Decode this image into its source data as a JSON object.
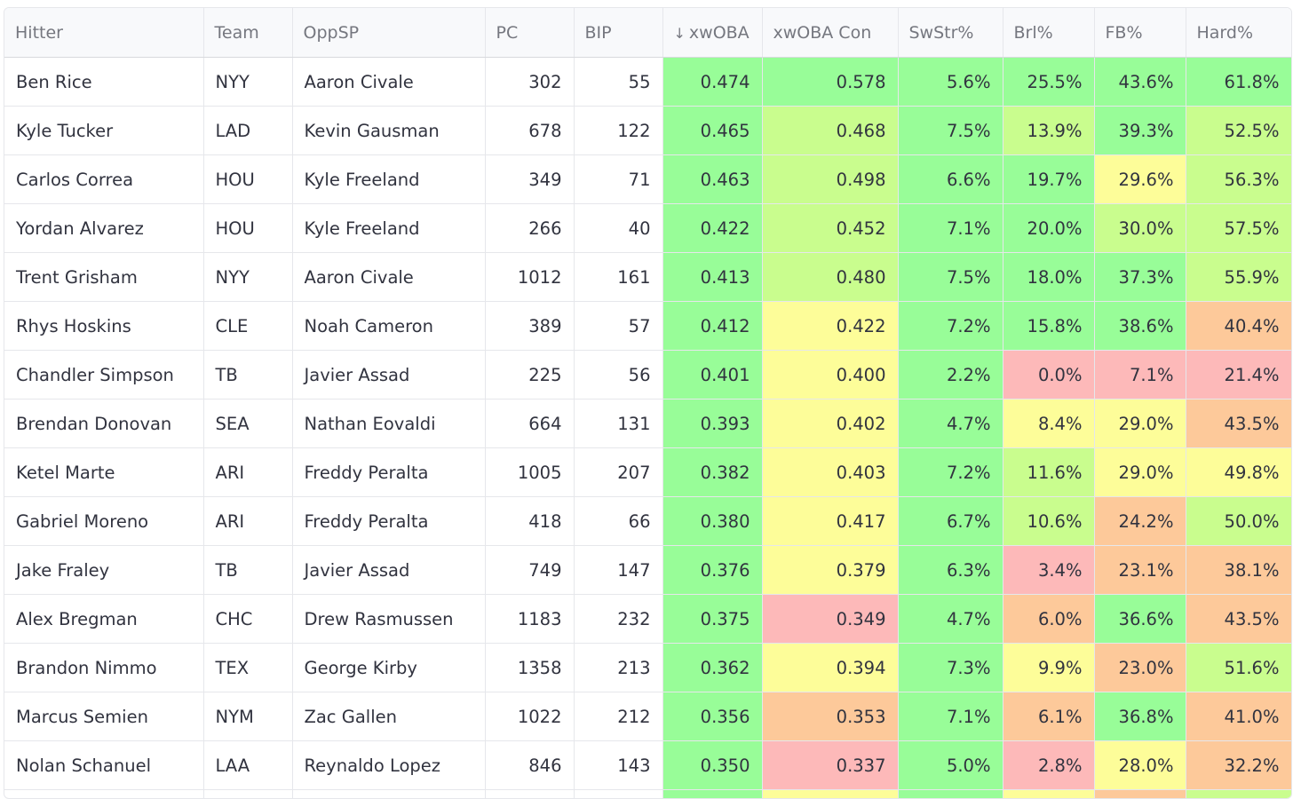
{
  "colors": {
    "green": "#98fd98",
    "lightgreen": "#c9fd8e",
    "yellow": "#fdfd99",
    "orange": "#fdc99a",
    "red": "#fdb9b9"
  },
  "table": {
    "columns": [
      {
        "key": "hitter",
        "label": "Hitter",
        "sort_icon": ""
      },
      {
        "key": "team",
        "label": "Team",
        "sort_icon": ""
      },
      {
        "key": "oppsp",
        "label": "OppSP",
        "sort_icon": ""
      },
      {
        "key": "pc",
        "label": "PC",
        "sort_icon": ""
      },
      {
        "key": "bip",
        "label": "BIP",
        "sort_icon": ""
      },
      {
        "key": "xwoba",
        "label": "xwOBA",
        "sort_icon": "arrow-down-icon"
      },
      {
        "key": "xwoba_con",
        "label": "xwOBA Con",
        "sort_icon": ""
      },
      {
        "key": "swstr",
        "label": "SwStr%",
        "sort_icon": ""
      },
      {
        "key": "brl",
        "label": "Brl%",
        "sort_icon": ""
      },
      {
        "key": "fb",
        "label": "FB%",
        "sort_icon": ""
      },
      {
        "key": "hard",
        "label": "Hard%",
        "sort_icon": ""
      }
    ],
    "rows": [
      {
        "hitter": "Ben Rice",
        "team": "NYY",
        "oppsp": "Aaron Civale",
        "pc": "302",
        "bip": "55",
        "xwoba": "0.474",
        "xwoba_con": "0.578",
        "swstr": "5.6%",
        "brl": "25.5%",
        "fb": "43.6%",
        "hard": "61.8%",
        "bg": {
          "xwoba": "green",
          "xwoba_con": "green",
          "swstr": "green",
          "brl": "green",
          "fb": "green",
          "hard": "green"
        }
      },
      {
        "hitter": "Kyle Tucker",
        "team": "LAD",
        "oppsp": "Kevin Gausman",
        "pc": "678",
        "bip": "122",
        "xwoba": "0.465",
        "xwoba_con": "0.468",
        "swstr": "7.5%",
        "brl": "13.9%",
        "fb": "39.3%",
        "hard": "52.5%",
        "bg": {
          "xwoba": "green",
          "xwoba_con": "lightgreen",
          "swstr": "green",
          "brl": "lightgreen",
          "fb": "green",
          "hard": "lightgreen"
        }
      },
      {
        "hitter": "Carlos Correa",
        "team": "HOU",
        "oppsp": "Kyle Freeland",
        "pc": "349",
        "bip": "71",
        "xwoba": "0.463",
        "xwoba_con": "0.498",
        "swstr": "6.6%",
        "brl": "19.7%",
        "fb": "29.6%",
        "hard": "56.3%",
        "bg": {
          "xwoba": "green",
          "xwoba_con": "lightgreen",
          "swstr": "green",
          "brl": "green",
          "fb": "yellow",
          "hard": "lightgreen"
        }
      },
      {
        "hitter": "Yordan Alvarez",
        "team": "HOU",
        "oppsp": "Kyle Freeland",
        "pc": "266",
        "bip": "40",
        "xwoba": "0.422",
        "xwoba_con": "0.452",
        "swstr": "7.1%",
        "brl": "20.0%",
        "fb": "30.0%",
        "hard": "57.5%",
        "bg": {
          "xwoba": "green",
          "xwoba_con": "lightgreen",
          "swstr": "green",
          "brl": "green",
          "fb": "lightgreen",
          "hard": "lightgreen"
        }
      },
      {
        "hitter": "Trent Grisham",
        "team": "NYY",
        "oppsp": "Aaron Civale",
        "pc": "1012",
        "bip": "161",
        "xwoba": "0.413",
        "xwoba_con": "0.480",
        "swstr": "7.5%",
        "brl": "18.0%",
        "fb": "37.3%",
        "hard": "55.9%",
        "bg": {
          "xwoba": "green",
          "xwoba_con": "lightgreen",
          "swstr": "green",
          "brl": "green",
          "fb": "green",
          "hard": "lightgreen"
        }
      },
      {
        "hitter": "Rhys Hoskins",
        "team": "CLE",
        "oppsp": "Noah Cameron",
        "pc": "389",
        "bip": "57",
        "xwoba": "0.412",
        "xwoba_con": "0.422",
        "swstr": "7.2%",
        "brl": "15.8%",
        "fb": "38.6%",
        "hard": "40.4%",
        "bg": {
          "xwoba": "green",
          "xwoba_con": "yellow",
          "swstr": "green",
          "brl": "green",
          "fb": "green",
          "hard": "orange"
        }
      },
      {
        "hitter": "Chandler Simpson",
        "team": "TB",
        "oppsp": "Javier Assad",
        "pc": "225",
        "bip": "56",
        "xwoba": "0.401",
        "xwoba_con": "0.400",
        "swstr": "2.2%",
        "brl": "0.0%",
        "fb": "7.1%",
        "hard": "21.4%",
        "bg": {
          "xwoba": "green",
          "xwoba_con": "yellow",
          "swstr": "green",
          "brl": "red",
          "fb": "red",
          "hard": "red"
        }
      },
      {
        "hitter": "Brendan Donovan",
        "team": "SEA",
        "oppsp": "Nathan Eovaldi",
        "pc": "664",
        "bip": "131",
        "xwoba": "0.393",
        "xwoba_con": "0.402",
        "swstr": "4.7%",
        "brl": "8.4%",
        "fb": "29.0%",
        "hard": "43.5%",
        "bg": {
          "xwoba": "green",
          "xwoba_con": "yellow",
          "swstr": "green",
          "brl": "yellow",
          "fb": "yellow",
          "hard": "orange"
        }
      },
      {
        "hitter": "Ketel Marte",
        "team": "ARI",
        "oppsp": "Freddy Peralta",
        "pc": "1005",
        "bip": "207",
        "xwoba": "0.382",
        "xwoba_con": "0.403",
        "swstr": "7.2%",
        "brl": "11.6%",
        "fb": "29.0%",
        "hard": "49.8%",
        "bg": {
          "xwoba": "green",
          "xwoba_con": "yellow",
          "swstr": "green",
          "brl": "lightgreen",
          "fb": "yellow",
          "hard": "yellow"
        }
      },
      {
        "hitter": "Gabriel Moreno",
        "team": "ARI",
        "oppsp": "Freddy Peralta",
        "pc": "418",
        "bip": "66",
        "xwoba": "0.380",
        "xwoba_con": "0.417",
        "swstr": "6.7%",
        "brl": "10.6%",
        "fb": "24.2%",
        "hard": "50.0%",
        "bg": {
          "xwoba": "green",
          "xwoba_con": "yellow",
          "swstr": "green",
          "brl": "lightgreen",
          "fb": "orange",
          "hard": "lightgreen"
        }
      },
      {
        "hitter": "Jake Fraley",
        "team": "TB",
        "oppsp": "Javier Assad",
        "pc": "749",
        "bip": "147",
        "xwoba": "0.376",
        "xwoba_con": "0.379",
        "swstr": "6.3%",
        "brl": "3.4%",
        "fb": "23.1%",
        "hard": "38.1%",
        "bg": {
          "xwoba": "green",
          "xwoba_con": "yellow",
          "swstr": "green",
          "brl": "red",
          "fb": "orange",
          "hard": "orange"
        }
      },
      {
        "hitter": "Alex Bregman",
        "team": "CHC",
        "oppsp": "Drew Rasmussen",
        "pc": "1183",
        "bip": "232",
        "xwoba": "0.375",
        "xwoba_con": "0.349",
        "swstr": "4.7%",
        "brl": "6.0%",
        "fb": "36.6%",
        "hard": "43.5%",
        "bg": {
          "xwoba": "green",
          "xwoba_con": "red",
          "swstr": "green",
          "brl": "orange",
          "fb": "green",
          "hard": "orange"
        }
      },
      {
        "hitter": "Brandon Nimmo",
        "team": "TEX",
        "oppsp": "George Kirby",
        "pc": "1358",
        "bip": "213",
        "xwoba": "0.362",
        "xwoba_con": "0.394",
        "swstr": "7.3%",
        "brl": "9.9%",
        "fb": "23.0%",
        "hard": "51.6%",
        "bg": {
          "xwoba": "green",
          "xwoba_con": "yellow",
          "swstr": "green",
          "brl": "yellow",
          "fb": "orange",
          "hard": "lightgreen"
        }
      },
      {
        "hitter": "Marcus Semien",
        "team": "NYM",
        "oppsp": "Zac Gallen",
        "pc": "1022",
        "bip": "212",
        "xwoba": "0.356",
        "xwoba_con": "0.353",
        "swstr": "7.1%",
        "brl": "6.1%",
        "fb": "36.8%",
        "hard": "41.0%",
        "bg": {
          "xwoba": "green",
          "xwoba_con": "orange",
          "swstr": "green",
          "brl": "orange",
          "fb": "green",
          "hard": "orange"
        }
      },
      {
        "hitter": "Nolan Schanuel",
        "team": "LAA",
        "oppsp": "Reynaldo Lopez",
        "pc": "846",
        "bip": "143",
        "xwoba": "0.350",
        "xwoba_con": "0.337",
        "swstr": "5.0%",
        "brl": "2.8%",
        "fb": "28.0%",
        "hard": "32.2%",
        "bg": {
          "xwoba": "green",
          "xwoba_con": "red",
          "swstr": "green",
          "brl": "red",
          "fb": "yellow",
          "hard": "orange"
        }
      }
    ],
    "partial_row_bg": {
      "xwoba": "green",
      "xwoba_con": "yellow",
      "swstr": "green",
      "brl": "yellow",
      "fb": "orange",
      "hard": "lightgreen"
    }
  }
}
